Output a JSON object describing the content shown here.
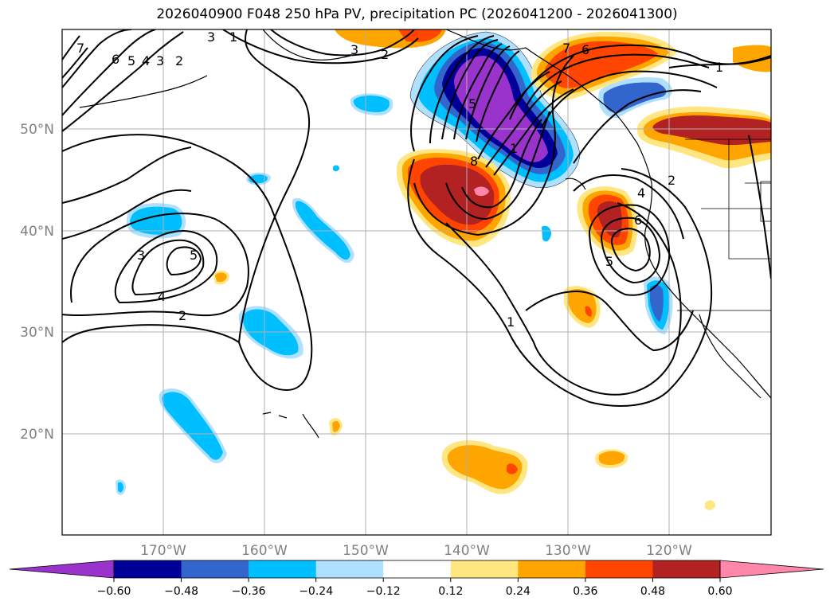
{
  "title": "2026040900 F048 250 hPa PV, precipitation PC (2026041200 - 2026041300)",
  "lat_labels": [
    "50°N",
    "40°N",
    "30°N",
    "20°N"
  ],
  "lon_labels": [
    "170°W",
    "160°W",
    "150°W",
    "140°W",
    "130°W",
    "120°W"
  ],
  "colorbar": {
    "ticks": [
      "−0.60",
      "−0.48",
      "−0.36",
      "−0.24",
      "−0.12",
      "0.12",
      "0.24",
      "0.36",
      "0.48",
      "0.60"
    ],
    "colors": [
      "#9933cc",
      "#000099",
      "#3366cc",
      "#00bfff",
      "#b0e0ff",
      "#ffffff",
      "#ffe680",
      "#ffa500",
      "#ff4500",
      "#b22222",
      "#ff88aa",
      "#ff88aa"
    ]
  },
  "contour_labels": [
    "7",
    "6",
    "5",
    "4",
    "3",
    "2",
    "1",
    "3",
    "2",
    "5",
    "8",
    "1",
    "7",
    "6",
    "1",
    "2",
    "4",
    "6",
    "5",
    "3",
    "5",
    "4",
    "3",
    "2",
    "1"
  ],
  "colors": {
    "purple": "#9933cc",
    "navy": "#000099",
    "blue": "#3366cc",
    "cyan": "#00bfff",
    "lightblue": "#b0e0ff",
    "yellow": "#ffe680",
    "orange": "#ffa500",
    "redorange": "#ff4500",
    "firebrick": "#b22222",
    "pink": "#ff88aa"
  }
}
